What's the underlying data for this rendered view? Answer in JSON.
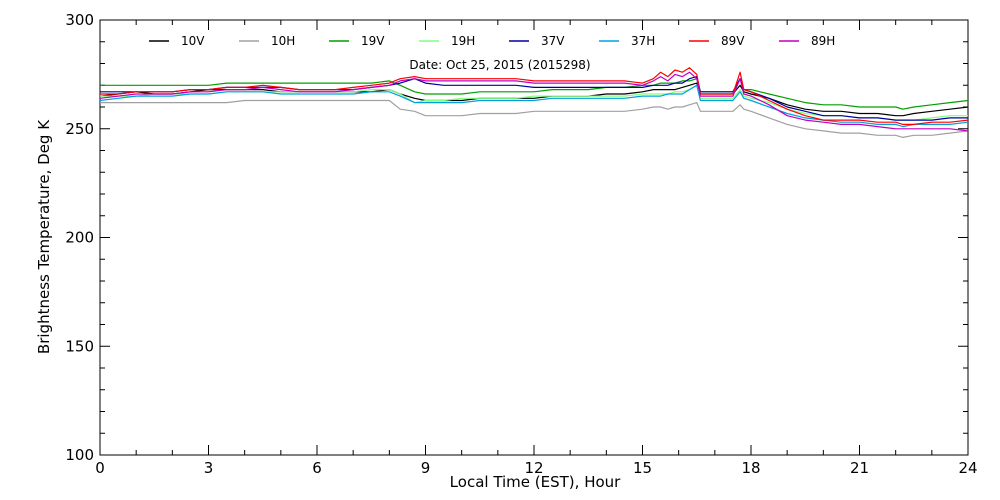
{
  "chart_data": {
    "type": "line",
    "annotation": "Date: Oct 25, 2015 (2015298)",
    "xlabel": "Local Time (EST), Hour",
    "ylabel": "Brightness Temperature, Deg K",
    "xlim": [
      0,
      24
    ],
    "ylim": [
      100,
      300
    ],
    "xticks": [
      0,
      3,
      6,
      9,
      12,
      15,
      18,
      21,
      24
    ],
    "yticks": [
      100,
      150,
      200,
      250,
      300
    ],
    "grid": false,
    "legend_position": "top, inside plot",
    "x": [
      0,
      0.5,
      1,
      1.5,
      2,
      2.5,
      3,
      3.5,
      4,
      4.5,
      5,
      5.5,
      6,
      6.5,
      7,
      7.5,
      8,
      8.3,
      8.7,
      9,
      9.5,
      10,
      10.5,
      11,
      11.5,
      12,
      12.5,
      13,
      13.5,
      14,
      14.5,
      15,
      15.3,
      15.5,
      15.7,
      15.9,
      16.1,
      16.3,
      16.5,
      16.6,
      17,
      17.5,
      17.7,
      17.8,
      18,
      18.5,
      19,
      19.5,
      20,
      20.5,
      21,
      21.5,
      22,
      22.2,
      22.5,
      23,
      23.5,
      24
    ],
    "series": [
      {
        "name": "10V",
        "color": "#000000",
        "values": [
          265,
          266,
          267,
          266,
          266,
          267,
          268,
          268,
          268,
          268,
          267,
          267,
          267,
          267,
          267,
          267,
          268,
          266,
          264,
          263,
          263,
          263,
          264,
          264,
          264,
          264,
          265,
          265,
          265,
          266,
          266,
          267,
          268,
          268,
          268,
          268,
          269,
          270,
          271,
          266,
          266,
          266,
          270,
          267,
          266,
          264,
          261,
          259,
          258,
          258,
          257,
          257,
          256,
          256,
          257,
          258,
          259,
          260
        ]
      },
      {
        "name": "10H",
        "color": "#a0a0a0",
        "values": [
          262,
          262,
          262,
          262,
          262,
          262,
          262,
          262,
          263,
          263,
          263,
          263,
          263,
          263,
          263,
          263,
          263,
          259,
          258,
          256,
          256,
          256,
          257,
          257,
          257,
          258,
          258,
          258,
          258,
          258,
          258,
          259,
          260,
          260,
          259,
          260,
          260,
          261,
          262,
          258,
          258,
          258,
          261,
          259,
          258,
          255,
          252,
          250,
          249,
          248,
          248,
          247,
          247,
          246,
          247,
          247,
          248,
          249
        ]
      },
      {
        "name": "19V",
        "color": "#00a000",
        "values": [
          270,
          270,
          270,
          270,
          270,
          270,
          270,
          271,
          271,
          271,
          271,
          271,
          271,
          271,
          271,
          271,
          272,
          270,
          267,
          266,
          266,
          266,
          267,
          267,
          267,
          267,
          268,
          268,
          268,
          269,
          269,
          270,
          270,
          271,
          271,
          271,
          272,
          272,
          273,
          267,
          267,
          267,
          273,
          268,
          268,
          266,
          264,
          262,
          261,
          261,
          260,
          260,
          260,
          259,
          260,
          261,
          262,
          263
        ]
      },
      {
        "name": "19H",
        "color": "#80ff80",
        "values": [
          265,
          265,
          265,
          266,
          266,
          266,
          266,
          267,
          267,
          267,
          267,
          267,
          267,
          267,
          267,
          268,
          268,
          266,
          262,
          263,
          263,
          264,
          264,
          264,
          264,
          265,
          265,
          265,
          265,
          265,
          265,
          266,
          266,
          266,
          266,
          267,
          267,
          268,
          270,
          264,
          264,
          264,
          268,
          265,
          264,
          262,
          259,
          257,
          256,
          256,
          255,
          255,
          254,
          254,
          254,
          255,
          256,
          256
        ]
      },
      {
        "name": "37V",
        "color": "#0000a0",
        "values": [
          267,
          267,
          267,
          267,
          267,
          268,
          268,
          269,
          269,
          269,
          269,
          268,
          268,
          268,
          268,
          269,
          270,
          271,
          273,
          271,
          270,
          270,
          270,
          270,
          270,
          269,
          269,
          269,
          269,
          269,
          269,
          269,
          270,
          270,
          270,
          271,
          271,
          273,
          274,
          267,
          267,
          267,
          273,
          268,
          267,
          264,
          260,
          258,
          256,
          256,
          255,
          255,
          254,
          254,
          254,
          254,
          255,
          255
        ]
      },
      {
        "name": "37H",
        "color": "#00a0e0",
        "values": [
          263,
          264,
          265,
          265,
          265,
          266,
          266,
          267,
          267,
          267,
          266,
          266,
          266,
          266,
          266,
          267,
          267,
          265,
          262,
          262,
          262,
          262,
          263,
          263,
          263,
          263,
          264,
          264,
          264,
          264,
          264,
          265,
          265,
          265,
          266,
          266,
          266,
          268,
          270,
          263,
          263,
          263,
          267,
          264,
          263,
          260,
          257,
          255,
          254,
          253,
          253,
          252,
          252,
          251,
          252,
          252,
          252,
          253
        ]
      },
      {
        "name": "89V",
        "color": "#ff0000",
        "values": [
          266,
          266,
          267,
          267,
          267,
          268,
          268,
          269,
          269,
          270,
          269,
          268,
          268,
          268,
          269,
          270,
          271,
          273,
          274,
          273,
          273,
          273,
          273,
          273,
          273,
          272,
          272,
          272,
          272,
          272,
          272,
          271,
          273,
          276,
          274,
          277,
          276,
          278,
          275,
          266,
          266,
          266,
          276,
          268,
          267,
          263,
          259,
          256,
          254,
          254,
          254,
          253,
          253,
          252,
          252,
          253,
          253,
          254
        ]
      },
      {
        "name": "89H",
        "color": "#c000c0",
        "values": [
          264,
          265,
          266,
          266,
          266,
          267,
          267,
          268,
          268,
          269,
          268,
          267,
          267,
          267,
          268,
          269,
          270,
          272,
          273,
          272,
          272,
          272,
          272,
          272,
          272,
          271,
          271,
          271,
          271,
          271,
          271,
          270,
          272,
          274,
          272,
          275,
          274,
          276,
          273,
          265,
          265,
          265,
          273,
          266,
          265,
          261,
          256,
          254,
          253,
          252,
          252,
          251,
          250,
          250,
          250,
          250,
          250,
          249
        ]
      }
    ]
  }
}
